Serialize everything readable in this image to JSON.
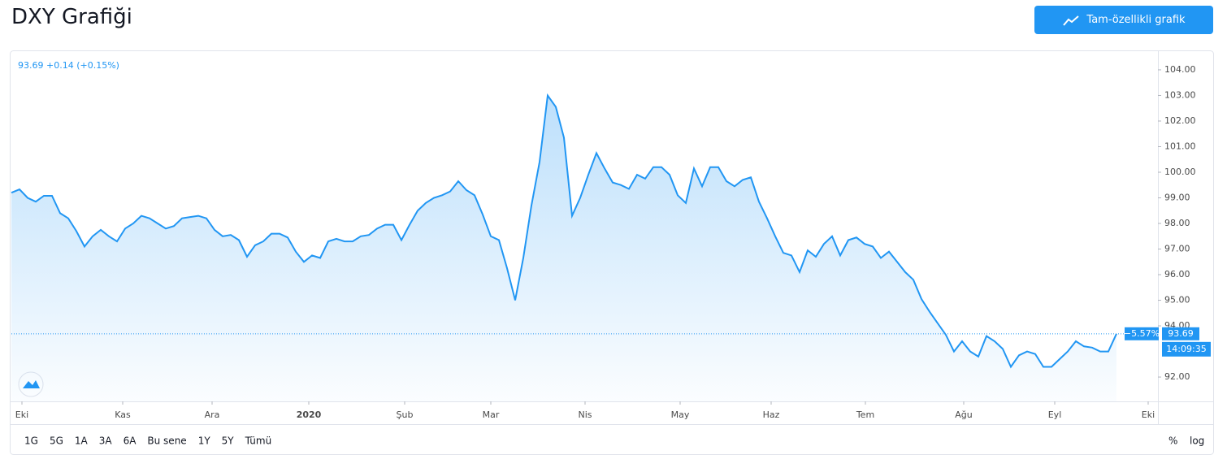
{
  "header": {
    "title": "DXY Grafiği",
    "button": "Tam-özellikli grafik"
  },
  "chart_data": {
    "type": "line",
    "color": "#2196f3",
    "legend": "93.69 +0.14 (+0.15%)",
    "change_label": "−5.57%",
    "price_label": "93.69",
    "time_label": "14:09:35",
    "values": [
      99.2,
      99.33,
      99.0,
      98.85,
      99.08,
      99.08,
      98.4,
      98.2,
      97.7,
      97.1,
      97.5,
      97.75,
      97.5,
      97.3,
      97.8,
      98.0,
      98.3,
      98.2,
      98.0,
      97.8,
      97.9,
      98.2,
      98.25,
      98.3,
      98.2,
      97.75,
      97.5,
      97.55,
      97.35,
      96.7,
      97.15,
      97.3,
      97.6,
      97.6,
      97.45,
      96.9,
      96.5,
      96.75,
      96.65,
      97.3,
      97.4,
      97.3,
      97.3,
      97.5,
      97.55,
      97.8,
      97.95,
      97.95,
      97.35,
      97.95,
      98.5,
      98.8,
      99.0,
      99.1,
      99.25,
      99.65,
      99.3,
      99.1,
      98.35,
      97.5,
      97.35,
      96.25,
      95.0,
      96.65,
      98.7,
      100.4,
      103.0,
      102.55,
      101.35,
      98.3,
      99.0,
      99.9,
      100.75,
      100.15,
      99.6,
      99.5,
      99.35,
      99.9,
      99.75,
      100.2,
      100.2,
      99.9,
      99.1,
      98.8,
      100.15,
      99.45,
      100.2,
      100.2,
      99.65,
      99.45,
      99.7,
      99.8,
      98.85,
      98.2,
      97.5,
      96.85,
      96.75,
      96.1,
      96.95,
      96.7,
      97.2,
      97.5,
      96.75,
      97.35,
      97.45,
      97.2,
      97.1,
      96.65,
      96.9,
      96.5,
      96.1,
      95.8,
      95.05,
      94.55,
      94.1,
      93.65,
      93.0,
      93.4,
      93.0,
      92.8,
      93.6,
      93.4,
      93.1,
      92.4,
      92.85,
      93.0,
      92.9,
      92.4,
      92.4,
      92.7,
      93.0,
      93.4,
      93.2,
      93.15,
      93.0,
      93.0,
      93.69
    ],
    "xlim": [
      0,
      141.1
    ],
    "xticks": [
      {
        "value": 1.3,
        "label": "Eki"
      },
      {
        "value": 13.7,
        "label": "Kas"
      },
      {
        "value": 24.7,
        "label": "Ara"
      },
      {
        "value": 36.6,
        "label": "2020"
      },
      {
        "value": 48.4,
        "label": "Şub"
      },
      {
        "value": 59,
        "label": "Mar"
      },
      {
        "value": 70.6,
        "label": "Nis"
      },
      {
        "value": 82.3,
        "label": "May"
      },
      {
        "value": 93.5,
        "label": "Haz"
      },
      {
        "value": 105.1,
        "label": "Tem"
      },
      {
        "value": 117.2,
        "label": "Ağu"
      },
      {
        "value": 128.4,
        "label": "Eyl"
      },
      {
        "value": 139.9,
        "label": "Eki"
      }
    ],
    "ylim": [
      91.05,
      104.76
    ],
    "yticks": [
      {
        "value": 92,
        "label": "92.00"
      },
      {
        "value": 94,
        "label": "94.00"
      },
      {
        "value": 95,
        "label": "95.00"
      },
      {
        "value": 96,
        "label": "96.00"
      },
      {
        "value": 97,
        "label": "97.00"
      },
      {
        "value": 98,
        "label": "98.00"
      },
      {
        "value": 99,
        "label": "99.00"
      },
      {
        "value": 100,
        "label": "100.00"
      },
      {
        "value": 101,
        "label": "101.00"
      },
      {
        "value": 102,
        "label": "102.00"
      },
      {
        "value": 103,
        "label": "103.00"
      },
      {
        "value": 104,
        "label": "104.00"
      }
    ]
  },
  "toolbar": {
    "ranges": [
      "1G",
      "5G",
      "1A",
      "3A",
      "6A",
      "Bu sene",
      "1Y",
      "5Y",
      "Tümü"
    ],
    "percent": "%",
    "log": "log"
  }
}
